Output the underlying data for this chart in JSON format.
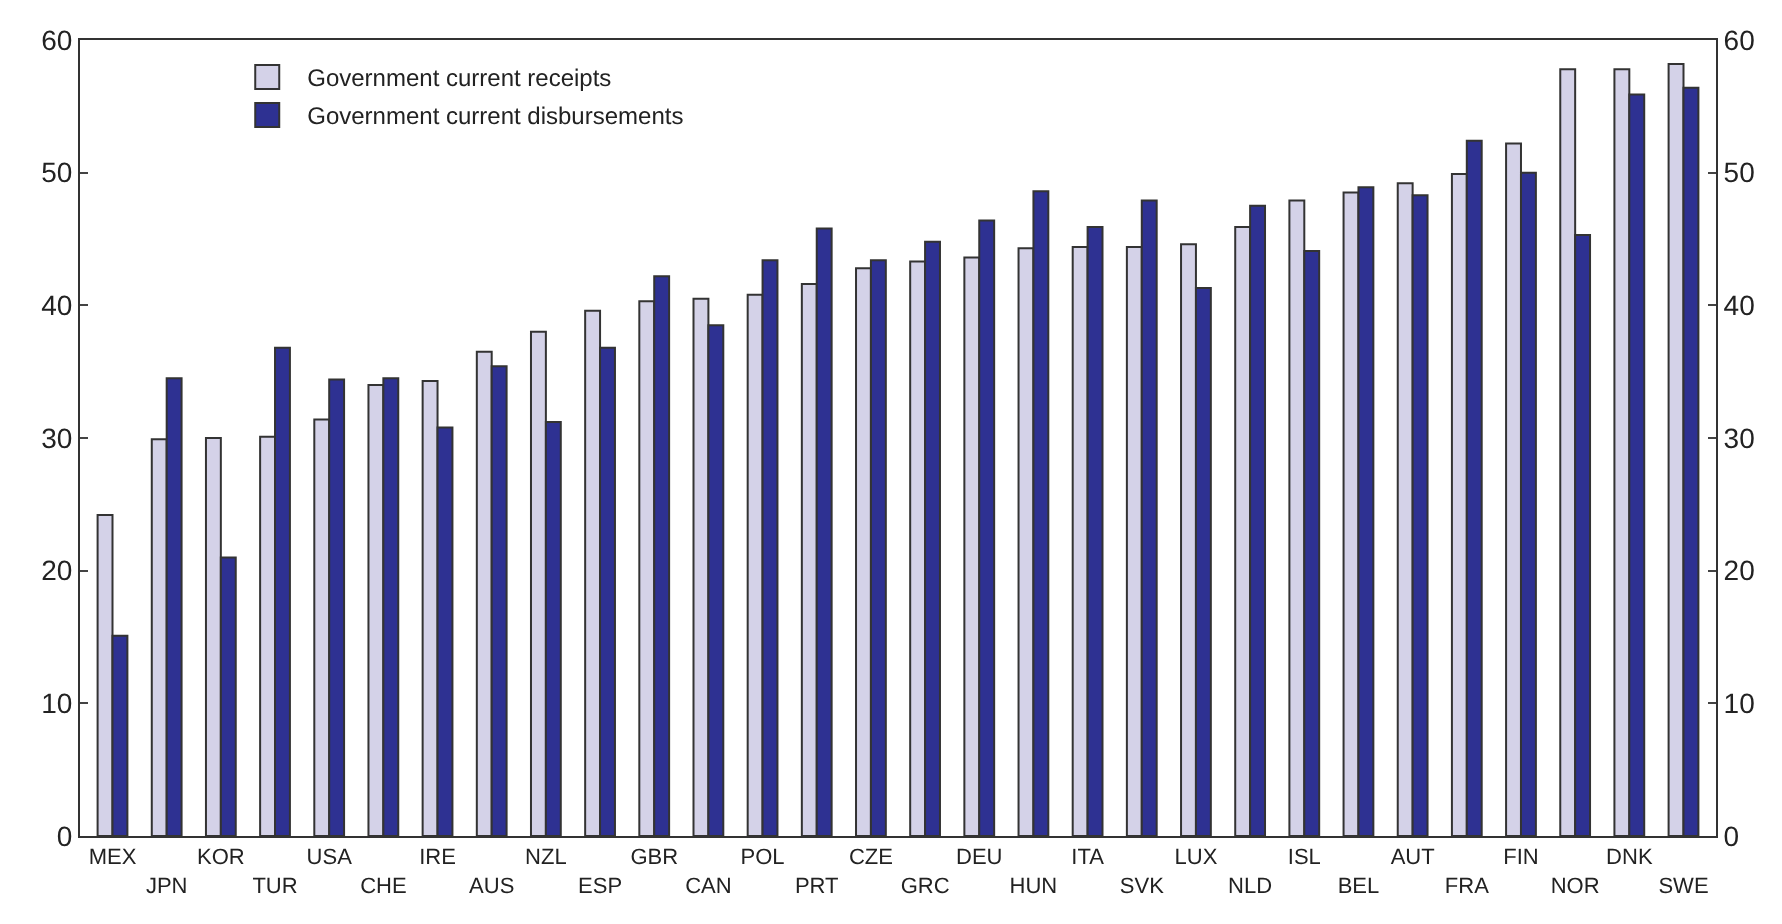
{
  "chart_data": {
    "type": "bar",
    "categories": [
      "MEX",
      "JPN",
      "KOR",
      "TUR",
      "USA",
      "CHE",
      "IRE",
      "AUS",
      "NZL",
      "ESP",
      "GBR",
      "CAN",
      "POL",
      "PRT",
      "CZE",
      "GRC",
      "DEU",
      "HUN",
      "ITA",
      "SVK",
      "LUX",
      "NLD",
      "ISL",
      "BEL",
      "AUT",
      "FRA",
      "FIN",
      "NOR",
      "DNK",
      "SWE"
    ],
    "series": [
      {
        "name": "Government current receipts",
        "color": "#d4d2e8",
        "values": [
          24.2,
          29.9,
          30,
          30.1,
          31.4,
          34,
          34.3,
          36.5,
          38,
          39.6,
          40.3,
          40.5,
          40.8,
          41.6,
          42.8,
          43.3,
          43.6,
          44.3,
          44.4,
          44.4,
          44.6,
          45.9,
          47.9,
          48.5,
          49.2,
          49.9,
          52.2,
          57.8,
          57.8,
          58.2
        ]
      },
      {
        "name": "Government current disbursements",
        "color": "#2e3192",
        "values": [
          15.1,
          34.5,
          21,
          36.8,
          34.4,
          34.5,
          30.8,
          35.4,
          31.2,
          36.8,
          42.2,
          38.5,
          43.4,
          45.8,
          43.4,
          44.8,
          46.4,
          48.6,
          45.9,
          47.9,
          41.3,
          47.5,
          44.1,
          48.9,
          48.3,
          52.4,
          50,
          45.3,
          55.9,
          56.4
        ]
      }
    ],
    "ylim": [
      0,
      60
    ],
    "yticks": [
      0,
      10,
      20,
      30,
      40,
      50,
      60
    ],
    "y2lim": [
      0,
      60
    ],
    "y2ticks": [
      0,
      10,
      20,
      30,
      40,
      50,
      60
    ],
    "legend": "top left"
  }
}
